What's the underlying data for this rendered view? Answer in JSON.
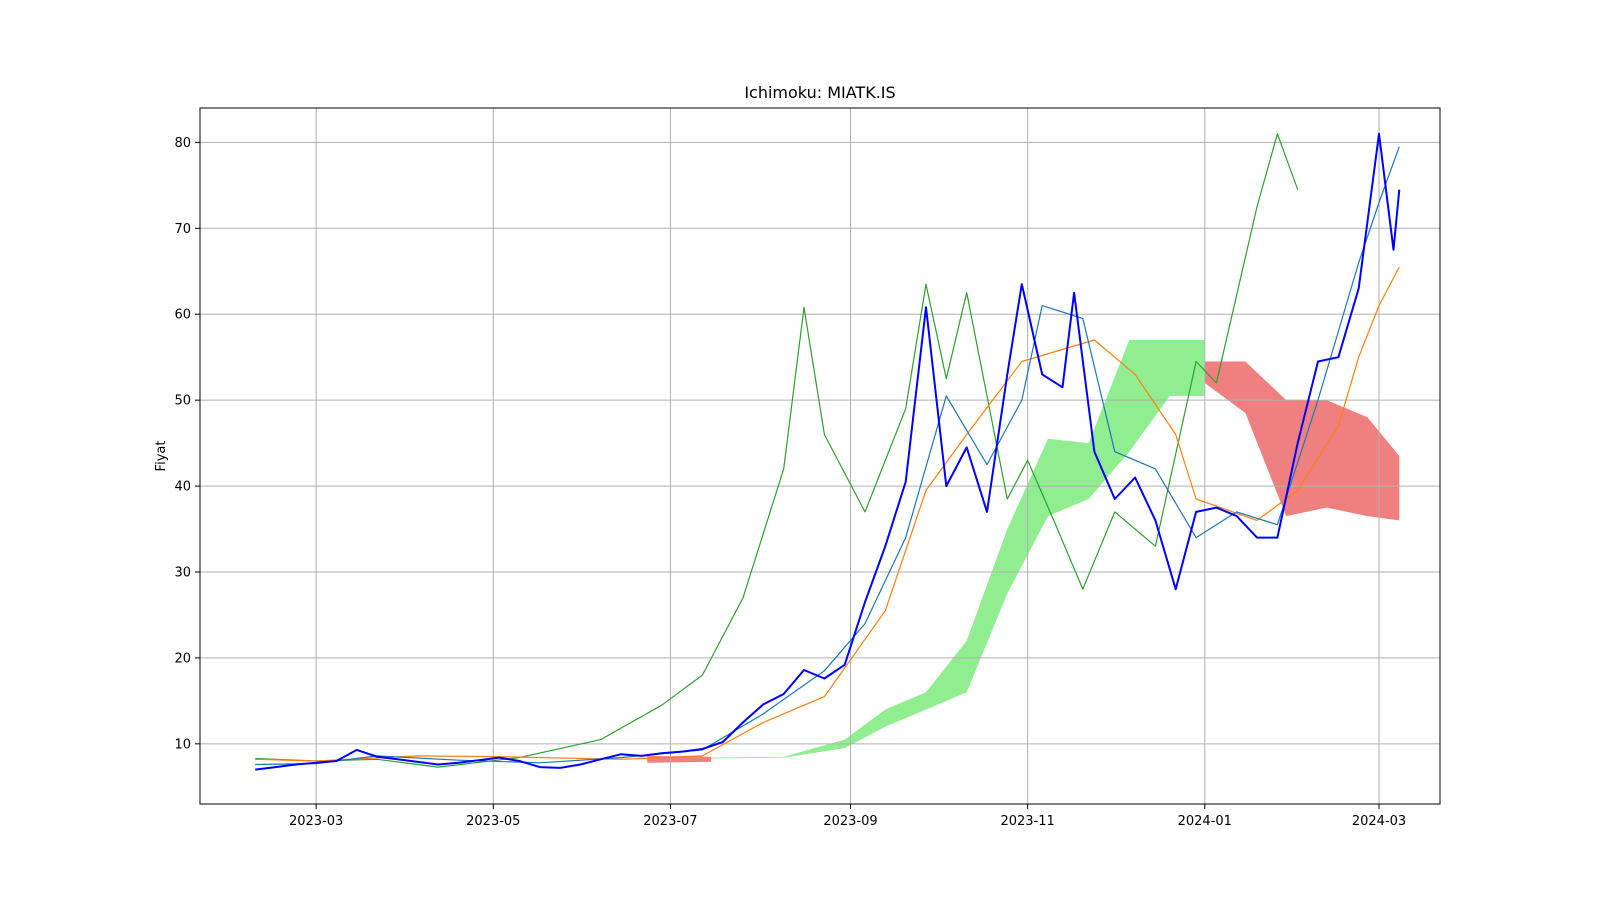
{
  "chart_data": {
    "type": "line",
    "title": "Ichimoku: MIATK.IS",
    "xlabel": "",
    "ylabel": "Fiyat",
    "xlim": [
      "2023-01-20",
      "2024-03-22"
    ],
    "ylim": [
      3,
      84
    ],
    "grid": true,
    "x_ticks": [
      "2023-03",
      "2023-05",
      "2023-07",
      "2023-09",
      "2023-11",
      "2024-01",
      "2024-03"
    ],
    "y_ticks": [
      10,
      20,
      30,
      40,
      50,
      60,
      70,
      80
    ],
    "colors": {
      "close": "#0000ff",
      "tenkan": "#1f77b4",
      "kijun": "#ff7f0e",
      "chikou": "#2ca02c",
      "cloud_bull": "#90ee90",
      "cloud_bear": "#f08080"
    },
    "series": [
      {
        "key": "close",
        "points": [
          [
            "2023-02-08",
            7.0
          ],
          [
            "2023-02-15",
            7.3
          ],
          [
            "2023-02-22",
            7.6
          ],
          [
            "2023-03-01",
            7.8
          ],
          [
            "2023-03-08",
            8.0
          ],
          [
            "2023-03-15",
            9.3
          ],
          [
            "2023-03-22",
            8.5
          ],
          [
            "2023-03-29",
            8.2
          ],
          [
            "2023-04-05",
            7.9
          ],
          [
            "2023-04-12",
            7.6
          ],
          [
            "2023-04-19",
            7.8
          ],
          [
            "2023-04-26",
            8.1
          ],
          [
            "2023-05-03",
            8.4
          ],
          [
            "2023-05-10",
            8.0
          ],
          [
            "2023-05-17",
            7.3
          ],
          [
            "2023-05-24",
            7.2
          ],
          [
            "2023-05-31",
            7.6
          ],
          [
            "2023-06-07",
            8.2
          ],
          [
            "2023-06-14",
            8.8
          ],
          [
            "2023-06-21",
            8.6
          ],
          [
            "2023-06-28",
            8.9
          ],
          [
            "2023-07-05",
            9.1
          ],
          [
            "2023-07-12",
            9.4
          ],
          [
            "2023-07-19",
            10.2
          ],
          [
            "2023-07-26",
            12.5
          ],
          [
            "2023-08-02",
            14.6
          ],
          [
            "2023-08-09",
            15.8
          ],
          [
            "2023-08-16",
            18.6
          ],
          [
            "2023-08-23",
            17.6
          ],
          [
            "2023-08-30",
            19.2
          ],
          [
            "2023-09-06",
            26.5
          ],
          [
            "2023-09-13",
            33.0
          ],
          [
            "2023-09-20",
            40.5
          ],
          [
            "2023-09-27",
            60.8
          ],
          [
            "2023-10-04",
            40.0
          ],
          [
            "2023-10-11",
            44.5
          ],
          [
            "2023-10-18",
            37.0
          ],
          [
            "2023-10-25",
            53.0
          ],
          [
            "2023-10-30",
            63.5
          ],
          [
            "2023-11-06",
            53.0
          ],
          [
            "2023-11-13",
            51.5
          ],
          [
            "2023-11-17",
            62.5
          ],
          [
            "2023-11-24",
            44.0
          ],
          [
            "2023-12-01",
            38.5
          ],
          [
            "2023-12-08",
            41.0
          ],
          [
            "2023-12-15",
            36.0
          ],
          [
            "2023-12-22",
            28.0
          ],
          [
            "2023-12-29",
            37.0
          ],
          [
            "2024-01-05",
            37.5
          ],
          [
            "2024-01-12",
            36.5
          ],
          [
            "2024-01-19",
            34.0
          ],
          [
            "2024-01-26",
            34.0
          ],
          [
            "2024-02-02",
            45.0
          ],
          [
            "2024-02-09",
            54.5
          ],
          [
            "2024-02-16",
            55.0
          ],
          [
            "2024-02-23",
            63.0
          ],
          [
            "2024-03-01",
            81.0
          ],
          [
            "2024-03-06",
            67.5
          ],
          [
            "2024-03-08",
            74.5
          ]
        ]
      },
      {
        "key": "tenkan",
        "points": [
          [
            "2023-02-08",
            7.6
          ],
          [
            "2023-03-01",
            7.7
          ],
          [
            "2023-03-22",
            8.6
          ],
          [
            "2023-04-19",
            8.1
          ],
          [
            "2023-05-17",
            7.8
          ],
          [
            "2023-06-14",
            8.4
          ],
          [
            "2023-07-12",
            9.3
          ],
          [
            "2023-08-02",
            13.5
          ],
          [
            "2023-08-23",
            18.5
          ],
          [
            "2023-09-06",
            24.0
          ],
          [
            "2023-09-20",
            34.0
          ],
          [
            "2023-10-04",
            50.5
          ],
          [
            "2023-10-18",
            42.5
          ],
          [
            "2023-10-30",
            50.0
          ],
          [
            "2023-11-06",
            61.0
          ],
          [
            "2023-11-20",
            59.5
          ],
          [
            "2023-12-01",
            44.0
          ],
          [
            "2023-12-15",
            42.0
          ],
          [
            "2023-12-29",
            34.0
          ],
          [
            "2024-01-12",
            37.0
          ],
          [
            "2024-01-26",
            35.5
          ],
          [
            "2024-02-09",
            50.0
          ],
          [
            "2024-02-23",
            66.0
          ],
          [
            "2024-03-01",
            73.0
          ],
          [
            "2024-03-08",
            79.5
          ]
        ]
      },
      {
        "key": "kijun",
        "points": [
          [
            "2023-02-08",
            8.2
          ],
          [
            "2023-03-01",
            8.0
          ],
          [
            "2023-04-05",
            8.6
          ],
          [
            "2023-05-03",
            8.5
          ],
          [
            "2023-06-14",
            8.2
          ],
          [
            "2023-07-12",
            8.6
          ],
          [
            "2023-08-02",
            12.5
          ],
          [
            "2023-08-23",
            15.5
          ],
          [
            "2023-09-13",
            25.5
          ],
          [
            "2023-09-27",
            39.5
          ],
          [
            "2023-10-11",
            46.0
          ],
          [
            "2023-10-30",
            54.5
          ],
          [
            "2023-11-24",
            57.0
          ],
          [
            "2023-12-08",
            53.0
          ],
          [
            "2023-12-22",
            46.0
          ],
          [
            "2023-12-29",
            38.5
          ],
          [
            "2024-01-19",
            36.0
          ],
          [
            "2024-02-02",
            39.5
          ],
          [
            "2024-02-16",
            47.0
          ],
          [
            "2024-02-23",
            55.0
          ],
          [
            "2024-03-01",
            61.0
          ],
          [
            "2024-03-08",
            65.5
          ]
        ]
      },
      {
        "key": "chikou",
        "points": [
          [
            "2023-02-08",
            8.3
          ],
          [
            "2023-03-01",
            8.0
          ],
          [
            "2023-03-22",
            8.2
          ],
          [
            "2023-04-12",
            7.3
          ],
          [
            "2023-05-10",
            8.4
          ],
          [
            "2023-06-07",
            10.5
          ],
          [
            "2023-06-28",
            14.5
          ],
          [
            "2023-07-12",
            18.0
          ],
          [
            "2023-07-26",
            27.0
          ],
          [
            "2023-08-09",
            42.0
          ],
          [
            "2023-08-16",
            60.8
          ],
          [
            "2023-08-23",
            46.0
          ],
          [
            "2023-09-06",
            37.0
          ],
          [
            "2023-09-20",
            49.0
          ],
          [
            "2023-09-27",
            63.5
          ],
          [
            "2023-10-04",
            52.5
          ],
          [
            "2023-10-11",
            62.5
          ],
          [
            "2023-10-25",
            38.5
          ],
          [
            "2023-11-01",
            43.0
          ],
          [
            "2023-11-10",
            36.0
          ],
          [
            "2023-11-20",
            28.0
          ],
          [
            "2023-12-01",
            37.0
          ],
          [
            "2023-12-15",
            33.0
          ],
          [
            "2023-12-29",
            54.5
          ],
          [
            "2024-01-05",
            52.0
          ],
          [
            "2024-01-19",
            72.5
          ],
          [
            "2024-01-26",
            81.0
          ],
          [
            "2024-02-02",
            74.5
          ]
        ]
      }
    ],
    "cloud": [
      {
        "trend": "bear",
        "x": [
          "2023-06-23",
          "2023-07-15"
        ],
        "upper": [
          8.6,
          8.5
        ],
        "lower": [
          7.8,
          7.9
        ]
      },
      {
        "trend": "bull",
        "x": [
          "2023-07-15",
          "2023-08-09",
          "2023-08-30",
          "2023-09-13",
          "2023-09-27",
          "2023-10-11",
          "2023-10-25",
          "2023-11-08",
          "2023-11-22",
          "2023-12-06",
          "2023-12-20",
          "2024-01-01"
        ],
        "upper": [
          8.4,
          8.5,
          10.5,
          14.0,
          16.0,
          22.0,
          35.0,
          45.5,
          45.0,
          57.0,
          57.0,
          57.0
        ],
        "lower": [
          8.3,
          8.4,
          9.5,
          12.0,
          14.0,
          16.0,
          27.5,
          36.5,
          38.5,
          44.0,
          50.5,
          50.5
        ]
      },
      {
        "trend": "bear",
        "x": [
          "2024-01-01",
          "2024-01-15",
          "2024-01-29",
          "2024-02-12",
          "2024-02-26",
          "2024-03-08"
        ],
        "upper": [
          54.5,
          54.5,
          50.0,
          50.0,
          48.0,
          43.5
        ],
        "lower": [
          52.0,
          48.5,
          36.5,
          37.5,
          36.5,
          36.0
        ]
      }
    ]
  }
}
